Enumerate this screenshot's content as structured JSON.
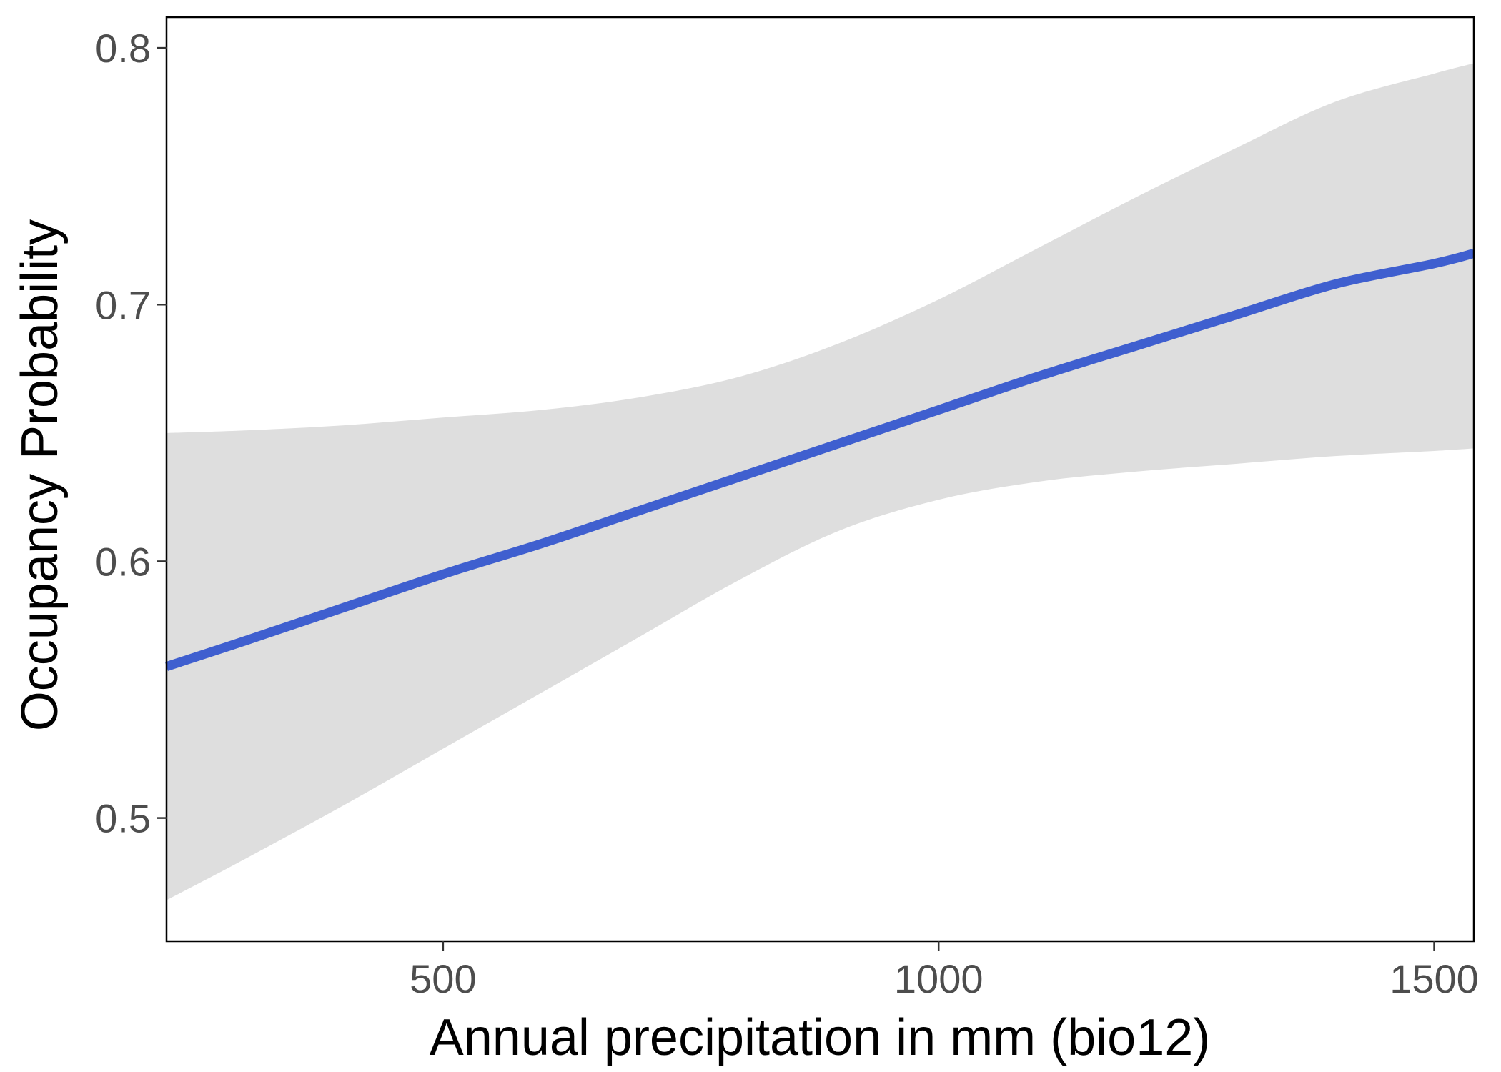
{
  "chart_data": {
    "type": "line",
    "title": "",
    "xlabel": "Annual precipitation in mm (bio12)",
    "ylabel": "Occupancy Probability",
    "xlim": [
      221,
      1540
    ],
    "ylim": [
      0.452,
      0.812
    ],
    "x_ticks": [
      500,
      1000,
      1500
    ],
    "y_ticks": [
      0.5,
      0.6,
      0.7,
      0.8
    ],
    "x_tick_labels": [
      "500",
      "1000",
      "1500"
    ],
    "y_tick_labels": [
      "0.5",
      "0.6",
      "0.7",
      "0.8"
    ],
    "grid": false,
    "series": [
      {
        "x": [
          221,
          300,
          400,
          500,
          600,
          700,
          800,
          900,
          1000,
          1100,
          1200,
          1300,
          1400,
          1500,
          1540
        ],
        "y": [
          0.559,
          0.569,
          0.582,
          0.595,
          0.607,
          0.62,
          0.633,
          0.646,
          0.659,
          0.672,
          0.684,
          0.696,
          0.708,
          0.716,
          0.72
        ],
        "lower": [
          0.468,
          0.484,
          0.505,
          0.527,
          0.549,
          0.571,
          0.593,
          0.612,
          0.624,
          0.631,
          0.635,
          0.638,
          0.641,
          0.643,
          0.644
        ],
        "upper": [
          0.65,
          0.651,
          0.653,
          0.656,
          0.659,
          0.664,
          0.672,
          0.685,
          0.702,
          0.722,
          0.742,
          0.761,
          0.779,
          0.79,
          0.794
        ]
      }
    ],
    "colors": {
      "line": "#3f5fcf",
      "band": "#dedede",
      "frame": "#000000"
    }
  }
}
